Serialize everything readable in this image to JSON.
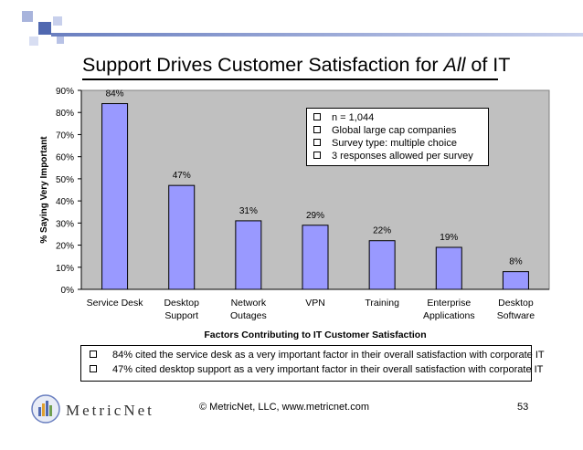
{
  "slide": {
    "title_prefix": "Support Drives Customer Satisfaction for ",
    "title_emphasis": "All",
    "title_suffix": " of IT",
    "footer": "© MetricNet, LLC, www.metricnet.com",
    "page_number": "53",
    "logo_text": "MetricNet"
  },
  "colors": {
    "bar": "#9999ff",
    "plot_bg": "#c0c0c0",
    "banner": "#8090c8"
  },
  "legend": {
    "items": [
      "n = 1,044",
      "Global large cap companies",
      "Survey type: multiple choice",
      "3 responses allowed per survey"
    ]
  },
  "notes": {
    "items": [
      "84% cited the service desk as a very important factor in their overall satisfaction with corporate IT",
      "47% cited desktop support as a very important factor in their overall satisfaction with corporate IT"
    ]
  },
  "chart_data": {
    "type": "bar",
    "categories": [
      [
        "Service Desk"
      ],
      [
        "Desktop",
        "Support"
      ],
      [
        "Network",
        "Outages"
      ],
      [
        "VPN"
      ],
      [
        "Training"
      ],
      [
        "Enterprise",
        "Applications"
      ],
      [
        "Desktop",
        "Software"
      ]
    ],
    "values": [
      84,
      47,
      31,
      29,
      22,
      19,
      8
    ],
    "data_labels": [
      "84%",
      "47%",
      "31%",
      "29%",
      "22%",
      "19%",
      "8%"
    ],
    "title": "",
    "xlabel": "Factors Contributing to IT Customer Satisfaction",
    "ylabel": "% Saying Very Important",
    "ylim": [
      0,
      90
    ],
    "yticks": [
      0,
      10,
      20,
      30,
      40,
      50,
      60,
      70,
      80,
      90
    ],
    "ytick_labels": [
      "0%",
      "10%",
      "20%",
      "30%",
      "40%",
      "50%",
      "60%",
      "70%",
      "80%",
      "90%"
    ],
    "grid": false
  }
}
